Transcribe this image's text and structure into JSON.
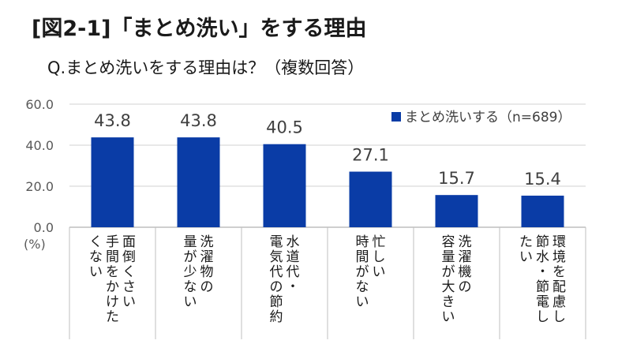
{
  "title": "[図2-1]「まとめ洗い」をする理由",
  "subtitle": "Q.まとめ洗いをする理由は？（複数回答）",
  "chart_data": {
    "type": "bar",
    "categories": [
      "面倒くさい手間をかけたくない",
      "洗濯物の量が少ない",
      "水道代・電気代の節約",
      "忙しい時間がない",
      "洗濯機の容量が大きい",
      "環境を配慮し節水・節電したい"
    ],
    "category_lines": [
      [
        "面倒くさい",
        "手間をかけた",
        "くない"
      ],
      [
        "洗濯物の",
        "量が少ない"
      ],
      [
        "水道代・",
        "電気代の節約"
      ],
      [
        "忙しい",
        "時間がない"
      ],
      [
        "洗濯機の",
        "容量が大きい"
      ],
      [
        "環境を配慮し",
        "節水・節電し",
        "たい"
      ]
    ],
    "series": [
      {
        "name": "まとめ洗いする（n=689）",
        "values": [
          43.8,
          43.8,
          40.5,
          27.1,
          15.7,
          15.4
        ]
      }
    ],
    "value_labels": [
      "43.8",
      "43.8",
      "40.5",
      "27.1",
      "15.7",
      "15.4"
    ],
    "y_ticks": [
      "0.0",
      "20.0",
      "40.0",
      "60.0"
    ],
    "y_tick_values": [
      0,
      20,
      40,
      60
    ],
    "ylim": [
      0,
      60
    ],
    "y_unit": "(%)",
    "grid": true,
    "legend_position": "top-right",
    "colors": {
      "bar": "#0a3ca6",
      "grid": "#d9d9d9",
      "axis": "#bfbfbf"
    }
  }
}
